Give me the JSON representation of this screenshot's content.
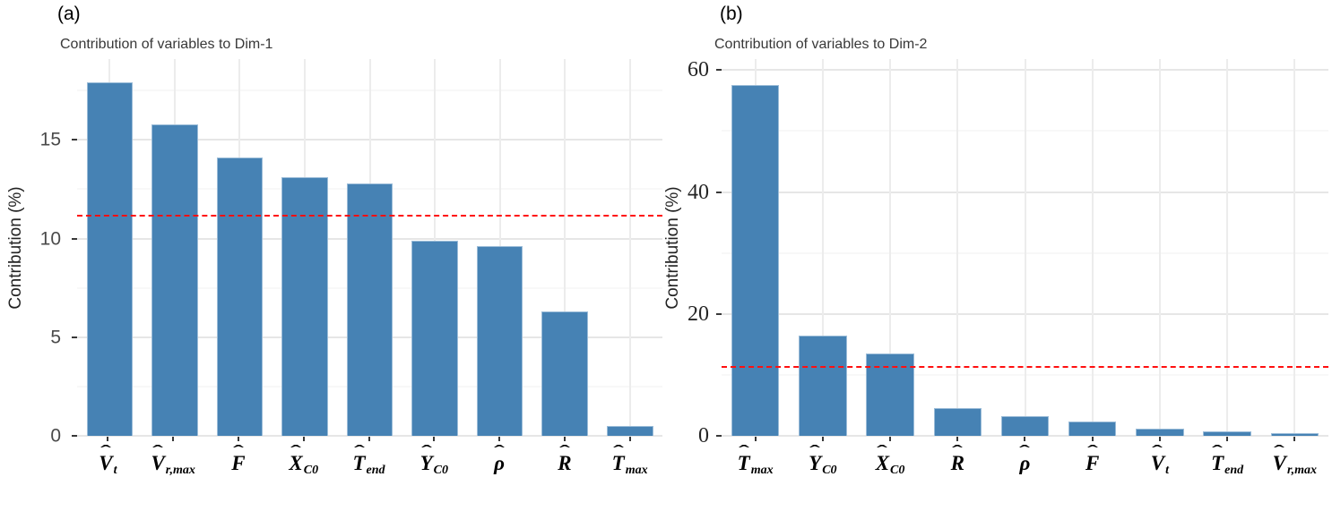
{
  "chart_data": [
    {
      "type": "bar",
      "panel_label": "(a)",
      "title": "Contribution of variables to Dim-1",
      "ylabel": "Contribution (%)",
      "xlabel": "",
      "categories": [
        "V̂_t",
        "V̂_r,max",
        "F̂",
        "X̂_C0",
        "T̂_end",
        "Ŷ_C0",
        "ρ̂",
        "R̂",
        "T̂_max"
      ],
      "categories_math": [
        {
          "base": "V",
          "sub": "t"
        },
        {
          "base": "V",
          "sub": "r,max"
        },
        {
          "base": "F",
          "sub": ""
        },
        {
          "base": "X",
          "sub": "C0"
        },
        {
          "base": "T",
          "sub": "end"
        },
        {
          "base": "Y",
          "sub": "C0"
        },
        {
          "base": "ρ",
          "sub": ""
        },
        {
          "base": "R",
          "sub": ""
        },
        {
          "base": "T",
          "sub": "max"
        }
      ],
      "values": [
        17.9,
        15.8,
        14.1,
        13.1,
        12.8,
        9.9,
        9.6,
        6.3,
        0.5
      ],
      "ylim": [
        0,
        19.1
      ],
      "yticks": [
        0,
        5,
        10,
        15
      ],
      "yticks_minor": [
        2.5,
        7.5,
        12.5,
        17.5
      ],
      "mean_line": 11.1,
      "grid": true,
      "legend": "none",
      "tick_label_font": "sans",
      "colors": {
        "bar": "#4682b4",
        "mean_line": "#ff0f0f"
      }
    },
    {
      "type": "bar",
      "panel_label": "(b)",
      "title": "Contribution of variables to Dim-2",
      "ylabel": "Contribution (%)",
      "xlabel": "",
      "categories": [
        "T̂_max",
        "Ŷ_C0",
        "X̂_C0",
        "R̂",
        "ρ̂",
        "F̂",
        "V̂_t",
        "T̂_end",
        "V̂_r,max"
      ],
      "categories_math": [
        {
          "base": "T",
          "sub": "max"
        },
        {
          "base": "Y",
          "sub": "C0"
        },
        {
          "base": "X",
          "sub": "C0"
        },
        {
          "base": "R",
          "sub": ""
        },
        {
          "base": "ρ",
          "sub": ""
        },
        {
          "base": "F",
          "sub": ""
        },
        {
          "base": "V",
          "sub": "t"
        },
        {
          "base": "T",
          "sub": "end"
        },
        {
          "base": "V",
          "sub": "r,max"
        }
      ],
      "values": [
        57.6,
        16.4,
        13.5,
        4.5,
        3.2,
        2.4,
        1.2,
        0.8,
        0.4
      ],
      "ylim": [
        0,
        61.8
      ],
      "yticks": [
        0,
        20,
        40,
        60
      ],
      "yticks_minor": [
        10,
        30,
        50
      ],
      "mean_line": 11.1,
      "grid": true,
      "legend": "none",
      "tick_label_font": "serif",
      "colors": {
        "bar": "#4682b4",
        "mean_line": "#ff0f0f"
      }
    }
  ]
}
